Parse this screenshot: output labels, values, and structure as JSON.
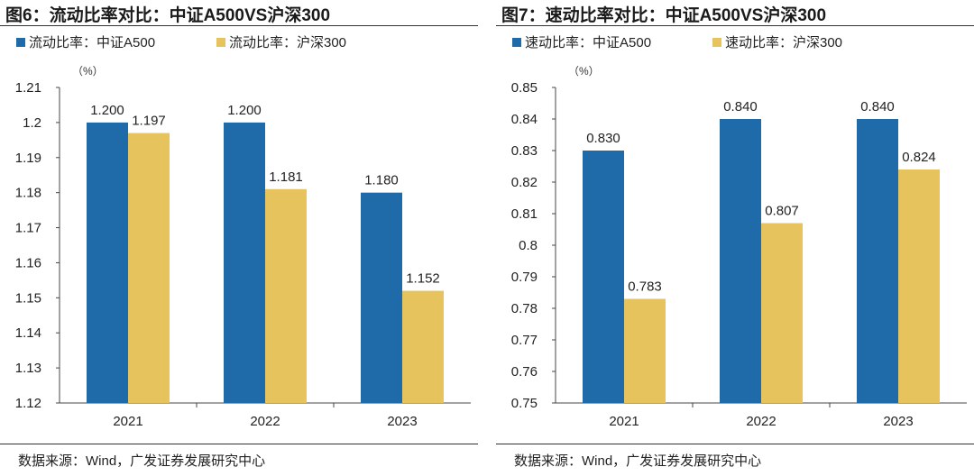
{
  "colors": {
    "a500": "#1f6aa8",
    "hs300": "#e6c35c"
  },
  "charts": [
    {
      "figure_title": "图6：流动比率对比：中证A500VS沪深300",
      "source": "数据来源：Wind，广发证券发展研究中心",
      "chart_data": {
        "type": "bar",
        "unit_label": "（%）",
        "categories": [
          "2021",
          "2022",
          "2023"
        ],
        "series": [
          {
            "name": "流动比率：中证A500",
            "values": [
              1.2,
              1.2,
              1.18
            ],
            "labels": [
              "1.200",
              "1.200",
              "1.180"
            ]
          },
          {
            "name": "流动比率：沪深300",
            "values": [
              1.197,
              1.181,
              1.152
            ],
            "labels": [
              "1.197",
              "1.181",
              "1.152"
            ]
          }
        ],
        "ylim": [
          1.12,
          1.21
        ],
        "yticks": [
          "1.12",
          "1.13",
          "1.14",
          "1.15",
          "1.16",
          "1.17",
          "1.18",
          "1.19",
          "1.2",
          "1.21"
        ],
        "legend": "top-left",
        "grid": false
      }
    },
    {
      "figure_title": "图7：速动比率对比：中证A500VS沪深300",
      "source": "数据来源：Wind，广发证券发展研究中心",
      "chart_data": {
        "type": "bar",
        "unit_label": "（%）",
        "categories": [
          "2021",
          "2022",
          "2023"
        ],
        "series": [
          {
            "name": "速动比率：中证A500",
            "values": [
              0.83,
              0.84,
              0.84
            ],
            "labels": [
              "0.830",
              "0.840",
              "0.840"
            ]
          },
          {
            "name": "速动比率：沪深300",
            "values": [
              0.783,
              0.807,
              0.824
            ],
            "labels": [
              "0.783",
              "0.807",
              "0.824"
            ]
          }
        ],
        "ylim": [
          0.75,
          0.85
        ],
        "yticks": [
          "0.75",
          "0.76",
          "0.77",
          "0.78",
          "0.79",
          "0.8",
          "0.81",
          "0.82",
          "0.83",
          "0.84",
          "0.85"
        ],
        "legend": "top-left",
        "grid": false
      }
    }
  ]
}
